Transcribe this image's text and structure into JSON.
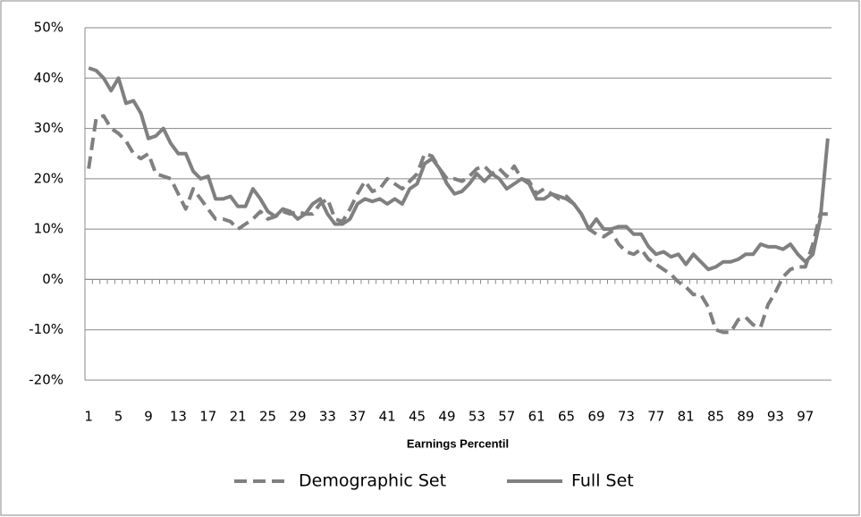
{
  "chart_data": {
    "type": "line",
    "x_label": "Earnings Percentil",
    "categories": [
      "1",
      null,
      null,
      null,
      "5",
      null,
      null,
      null,
      "9",
      null,
      null,
      null,
      "13",
      null,
      null,
      null,
      "17",
      null,
      null,
      null,
      "21",
      null,
      null,
      null,
      "25",
      null,
      null,
      null,
      "29",
      null,
      null,
      null,
      "33",
      null,
      null,
      null,
      "37",
      null,
      null,
      null,
      "41",
      null,
      null,
      null,
      "45",
      null,
      null,
      null,
      "49",
      null,
      null,
      null,
      "53",
      null,
      null,
      null,
      "57",
      null,
      null,
      null,
      "61",
      null,
      null,
      null,
      "65",
      null,
      null,
      null,
      "69",
      null,
      null,
      null,
      "73",
      null,
      null,
      null,
      "77",
      null,
      null,
      null,
      "81",
      null,
      null,
      null,
      "85",
      null,
      null,
      null,
      "89",
      null,
      null,
      null,
      "93",
      null,
      null,
      null,
      "97",
      null,
      null,
      null
    ],
    "series": [
      {
        "name": "Demographic Set",
        "color": "#808080",
        "dashed": true,
        "values": [
          22,
          32,
          32.5,
          30,
          29,
          27.5,
          25,
          24,
          25,
          21,
          20.5,
          20,
          17,
          14,
          18,
          16,
          14,
          12,
          12,
          11.5,
          10,
          11,
          12,
          13.5,
          12,
          12.5,
          13.5,
          13,
          13.5,
          13,
          13,
          15,
          16,
          12,
          11.5,
          14,
          17,
          19.5,
          17.5,
          18,
          20,
          19,
          18,
          19.5,
          21,
          25,
          24.5,
          22,
          20,
          20,
          19.5,
          20.5,
          22,
          22.5,
          21,
          22,
          20.5,
          22.5,
          20,
          19.5,
          17,
          18,
          17,
          16,
          16.5,
          15,
          13,
          10,
          9,
          8.5,
          9.5,
          7,
          5.5,
          5,
          6,
          4,
          3,
          2,
          1,
          -0.5,
          -1.5,
          -3,
          -3,
          -5.5,
          -10,
          -10.5,
          -10.5,
          -8,
          -7.5,
          -9,
          -9.5,
          -5,
          -2.5,
          0.5,
          2,
          2.5,
          2.5,
          7,
          13,
          13
        ]
      },
      {
        "name": "Full Set",
        "color": "#808080",
        "dashed": false,
        "values": [
          42,
          41.5,
          40,
          37.5,
          40,
          35,
          35.5,
          33,
          28,
          28.5,
          30,
          27,
          25,
          25,
          21.5,
          20,
          20.5,
          16,
          16,
          16.5,
          14.5,
          14.5,
          18,
          16,
          13.5,
          12.5,
          14,
          13.5,
          12,
          13,
          15,
          16,
          13,
          11,
          11,
          12,
          15,
          16,
          15.5,
          16,
          15,
          16,
          15,
          18,
          19,
          23,
          24,
          22,
          19,
          17,
          17.5,
          19,
          21,
          19.5,
          21,
          20,
          18,
          19,
          20,
          19,
          16,
          16,
          17,
          16.5,
          16,
          15,
          13,
          10,
          12,
          10,
          10,
          10.5,
          10.5,
          9,
          9,
          6.5,
          5,
          5.5,
          4.5,
          5,
          3,
          5,
          3.5,
          2,
          2.5,
          3.5,
          3.5,
          4,
          5,
          5,
          7,
          6.5,
          6.5,
          6,
          7,
          5,
          3.5,
          5,
          12,
          28
        ]
      }
    ],
    "ylim": [
      -20,
      50
    ],
    "yticks": [
      {
        "value": -20,
        "label": "-20%"
      },
      {
        "value": -10,
        "label": "-10%"
      },
      {
        "value": 0,
        "label": "0%"
      },
      {
        "value": 10,
        "label": "10%"
      },
      {
        "value": 20,
        "label": "20%"
      },
      {
        "value": 30,
        "label": "30%"
      },
      {
        "value": 40,
        "label": "40%"
      },
      {
        "value": 50,
        "label": "50%"
      }
    ],
    "grid": true,
    "legend": "bottom"
  }
}
